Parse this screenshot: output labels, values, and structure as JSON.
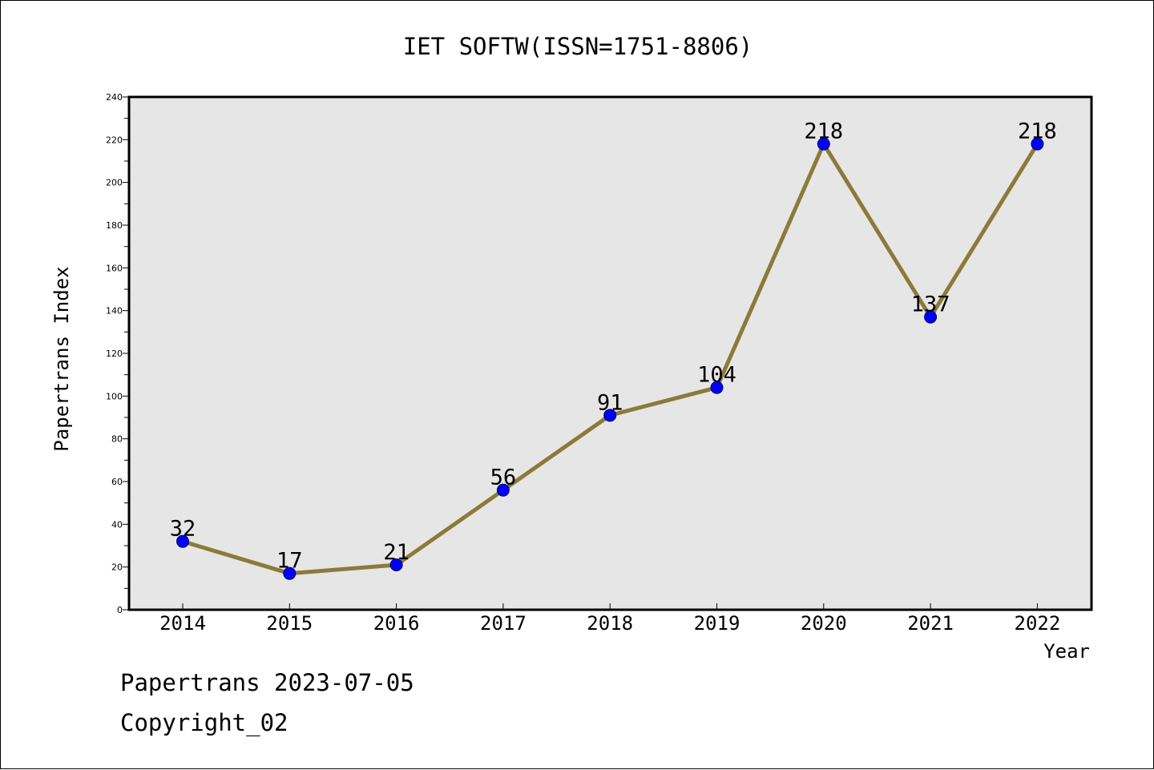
{
  "chart_data": {
    "type": "line",
    "title": "IET SOFTW(ISSN=1751-8806)",
    "xlabel": "Year",
    "ylabel": "Papertrans Index",
    "categories": [
      "2014",
      "2015",
      "2016",
      "2017",
      "2018",
      "2019",
      "2020",
      "2021",
      "2022"
    ],
    "values": [
      32,
      17,
      21,
      56,
      91,
      104,
      218,
      137,
      218
    ],
    "ylim": [
      0,
      240
    ],
    "yticks": [
      0,
      20,
      40,
      60,
      80,
      100,
      120,
      140,
      160,
      180,
      200,
      220,
      240
    ],
    "grid": false,
    "legend": "none",
    "colors": {
      "line": "#8c7a3a",
      "marker_fill": "#0000ff",
      "marker_stroke": "#000066",
      "plot_background": "#e6e6e6"
    }
  },
  "footer": {
    "line1": "Papertrans 2023-07-05",
    "line2": "Copyright_02"
  }
}
